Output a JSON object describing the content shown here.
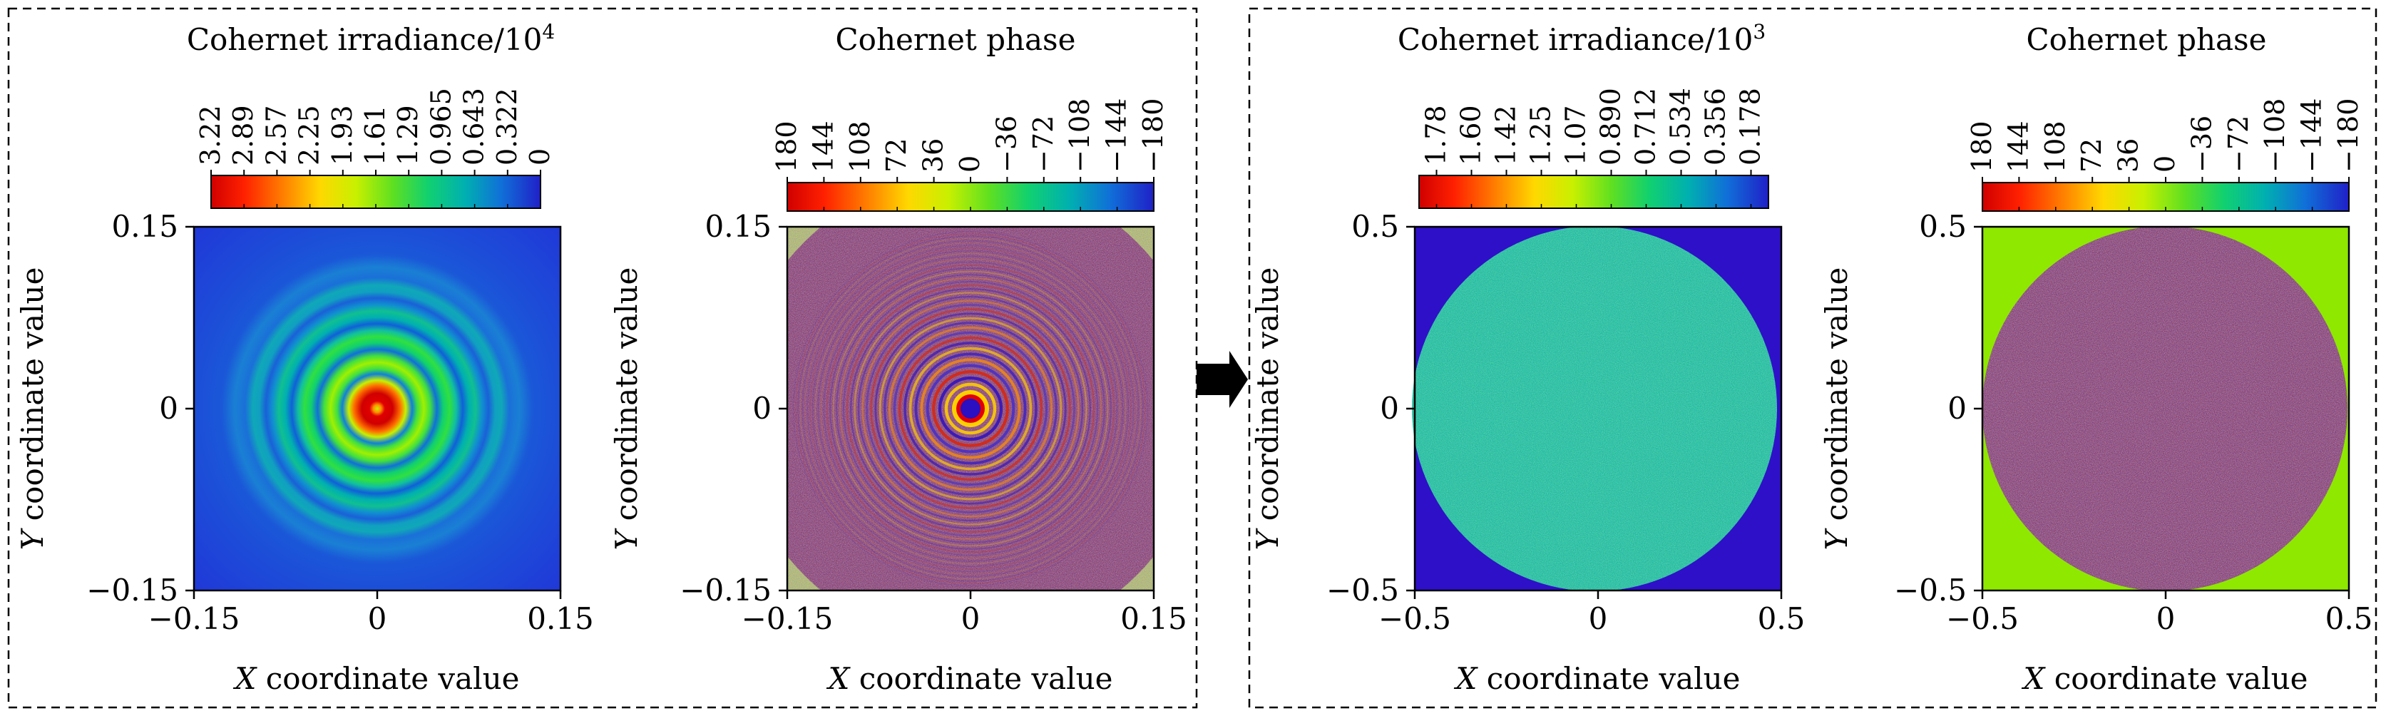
{
  "chart_data": [
    {
      "type": "heatmap",
      "panel": "left-group",
      "title": "Cohernet irradiance/10",
      "title_exp": "4",
      "colorbar": {
        "ticks": [
          "3.22",
          "2.89",
          "2.57",
          "2.25",
          "1.93",
          "1.61",
          "1.29",
          "0.965",
          "0.643",
          "0.322",
          "0"
        ],
        "colormap": "rainbow",
        "range": [
          0,
          3.22
        ],
        "direction": "descending"
      },
      "pattern": "airy-rings",
      "xlabel_var": "X",
      "xlabel": " coordinate value",
      "ylabel_var": "Y",
      "ylabel": " coordinate value",
      "xlim": [
        -0.15,
        0.15
      ],
      "ylim": [
        -0.15,
        0.15
      ],
      "xticks": [
        "−0.15",
        "0",
        "0.15"
      ],
      "yticks": [
        "−0.15",
        "0",
        "0.15"
      ]
    },
    {
      "type": "heatmap",
      "panel": "left-group",
      "title": "Cohernet phase",
      "colorbar": {
        "ticks": [
          "180",
          "144",
          "108",
          "72",
          "36",
          "0",
          "−36",
          "−72",
          "−108",
          "−144",
          "−180"
        ],
        "colormap": "rainbow",
        "range": [
          -180,
          180
        ],
        "direction": "descending"
      },
      "pattern": "phase-rings-noise",
      "xlabel_var": "X",
      "xlabel": " coordinate value",
      "ylabel_var": "Y",
      "ylabel": " coordinate value",
      "xlim": [
        -0.15,
        0.15
      ],
      "ylim": [
        -0.15,
        0.15
      ],
      "xticks": [
        "−0.15",
        "0",
        "0.15"
      ],
      "yticks": [
        "−0.15",
        "0",
        "0.15"
      ]
    },
    {
      "type": "heatmap",
      "panel": "right-group",
      "title": "Cohernet irradiance/10",
      "title_exp": "3",
      "colorbar": {
        "ticks": [
          "1.78",
          "1.60",
          "1.42",
          "1.25",
          "1.07",
          "0.890",
          "0.712",
          "0.534",
          "0.356",
          "0.178"
        ],
        "colormap": "rainbow",
        "range": [
          0,
          1.78
        ],
        "direction": "descending"
      },
      "pattern": "uniform-disk-noise",
      "xlabel_var": "X",
      "xlabel": " coordinate value",
      "ylabel_var": "Y",
      "ylabel": " coordinate value",
      "xlim": [
        -0.5,
        0.5
      ],
      "ylim": [
        -0.5,
        0.5
      ],
      "xticks": [
        "−0.5",
        "0",
        "0.5"
      ],
      "yticks": [
        "−0.5",
        "0",
        "0.5"
      ]
    },
    {
      "type": "heatmap",
      "panel": "right-group",
      "title": "Cohernet phase",
      "colorbar": {
        "ticks": [
          "180",
          "144",
          "108",
          "72",
          "36",
          "0",
          "−36",
          "−72",
          "−108",
          "−144",
          "−180"
        ],
        "colormap": "rainbow",
        "range": [
          -180,
          180
        ],
        "direction": "descending"
      },
      "pattern": "random-phase-disk",
      "xlabel_var": "X",
      "xlabel": " coordinate value",
      "ylabel_var": "Y",
      "ylabel": " coordinate value",
      "xlim": [
        -0.5,
        0.5
      ],
      "ylim": [
        -0.5,
        0.5
      ],
      "xticks": [
        "−0.5",
        "0",
        "0.5"
      ],
      "yticks": [
        "−0.5",
        "0",
        "0.5"
      ]
    }
  ],
  "colors": {
    "rainbow": [
      "#d00000",
      "#ff2000",
      "#ff7a00",
      "#ffd000",
      "#c8f000",
      "#70e000",
      "#10d860",
      "#00b8a8",
      "#1080d0",
      "#2040d8",
      "#2a1ad0"
    ],
    "outside_irradiance": "#2e10c8",
    "outside_phase": "#8ee800",
    "frame": "#000000"
  },
  "arrow_icon": "right-arrow-icon"
}
